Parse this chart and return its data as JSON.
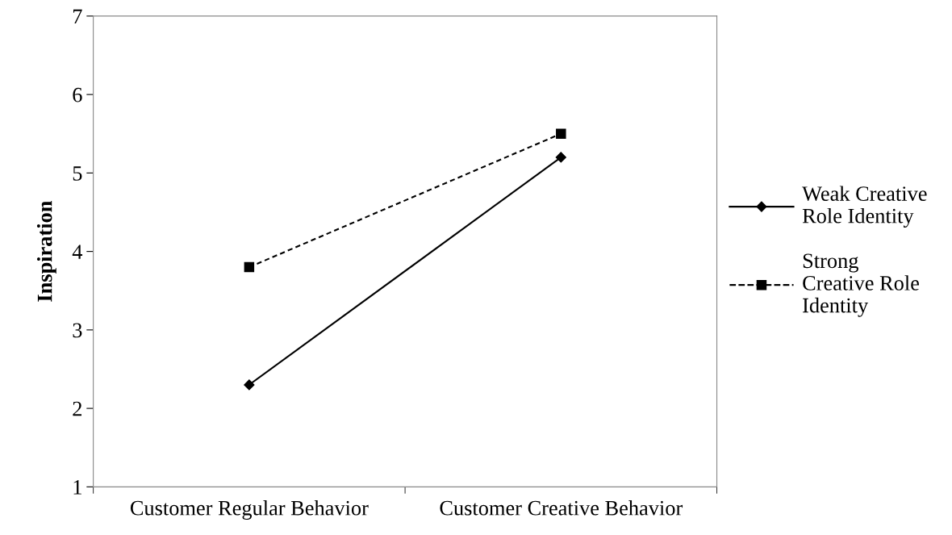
{
  "chart_data": {
    "type": "line",
    "ylabel": "Inspiration",
    "categories": [
      "Customer Regular Behavior",
      "Customer Creative Behavior"
    ],
    "series": [
      {
        "name": "Weak Creative Role Identity",
        "color": "#000000",
        "values": [
          2.3,
          5.2
        ],
        "marker": "diamond",
        "line_style": "solid"
      },
      {
        "name": "Strong Creative Role Identity",
        "color": "#000000",
        "values": [
          3.8,
          5.5
        ],
        "marker": "square",
        "line_style": "dashed"
      }
    ],
    "ylim": [
      1,
      7
    ],
    "yticks": [
      1,
      2,
      3,
      4,
      5,
      6,
      7
    ],
    "grid": false,
    "legend": "right"
  }
}
